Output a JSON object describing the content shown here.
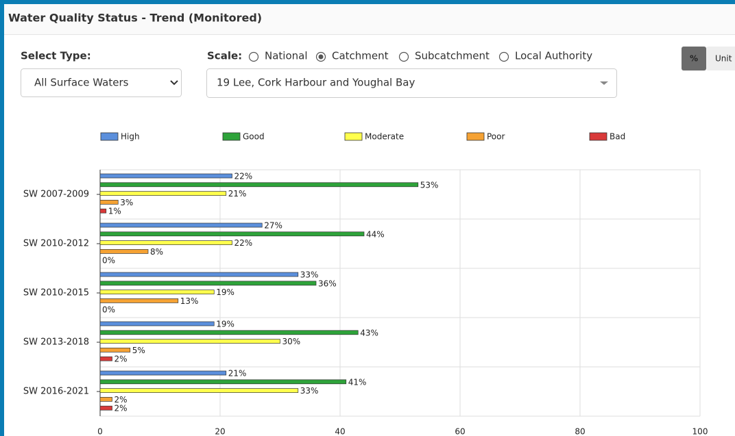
{
  "header": {
    "title": "Water Quality Status - Trend (Monitored)"
  },
  "controls": {
    "select_type": {
      "label": "Select Type:",
      "value": "All Surface Waters"
    },
    "scale": {
      "label": "Scale:",
      "options": [
        "National",
        "Catchment",
        "Subcatchment",
        "Local Authority"
      ],
      "selected_index": 1
    },
    "area": {
      "value": "19 Lee, Cork Harbour and Youghal Bay"
    },
    "toggle": {
      "options": [
        "%",
        "Unit"
      ],
      "active_index": 0
    }
  },
  "chart_data": {
    "type": "bar",
    "orientation": "horizontal",
    "categories": [
      "SW 2007-2009",
      "SW 2010-2012",
      "SW 2010-2015",
      "SW 2013-2018",
      "SW 2016-2021"
    ],
    "series": [
      {
        "name": "High",
        "color": "#5b8fdc",
        "values": [
          22,
          27,
          33,
          19,
          21
        ],
        "value_labels": [
          "22%",
          "27%",
          "33%",
          "19%",
          "21%"
        ]
      },
      {
        "name": "Good",
        "color": "#2ea33a",
        "values": [
          53,
          44,
          36,
          43,
          41
        ],
        "value_labels": [
          "53%",
          "44%",
          "36%",
          "43%",
          "41%"
        ]
      },
      {
        "name": "Moderate",
        "color": "#ffff4d",
        "values": [
          21,
          22,
          19,
          30,
          33
        ],
        "value_labels": [
          "21%",
          "22%",
          "19%",
          "30%",
          "33%"
        ]
      },
      {
        "name": "Poor",
        "color": "#f5a234",
        "values": [
          3,
          8,
          13,
          5,
          2
        ],
        "value_labels": [
          "3%",
          "8%",
          "13%",
          "5%",
          "2%"
        ]
      },
      {
        "name": "Bad",
        "color": "#d93a3a",
        "values": [
          1,
          0,
          0,
          2,
          2
        ],
        "value_labels": [
          "1%",
          "0%",
          "0%",
          "2%",
          "2%"
        ]
      }
    ],
    "xlim": [
      0,
      100
    ],
    "xticks": [
      0,
      20,
      40,
      60,
      80,
      100
    ],
    "grid": true,
    "legend": "top"
  }
}
